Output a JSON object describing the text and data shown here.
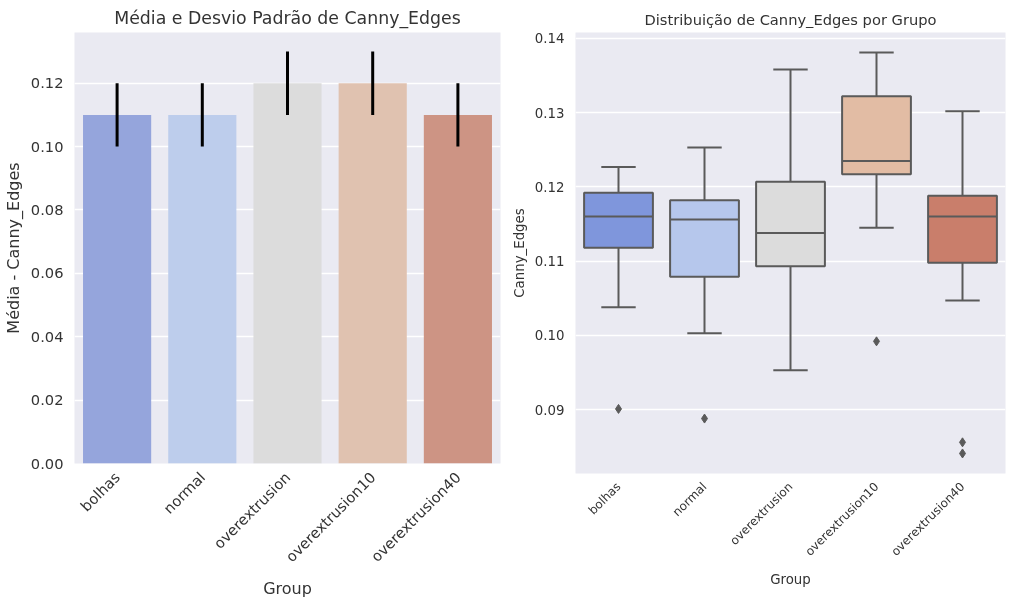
{
  "chart_data": [
    {
      "type": "bar",
      "title": "Média e Desvio Padrão de Canny_Edges",
      "xlabel": "Group",
      "ylabel": "Média - Canny_Edges",
      "categories": [
        "bolhas",
        "normal",
        "overextrusion",
        "overextrusion10",
        "overextrusion40"
      ],
      "values": [
        0.11,
        0.11,
        0.12,
        0.12,
        0.11
      ],
      "errors": [
        0.01,
        0.01,
        0.01,
        0.01,
        0.01
      ],
      "colors": [
        "#95a5dc",
        "#bdcdec",
        "#dcdcdc",
        "#e0c2b0",
        "#cd9484"
      ],
      "ylim": [
        0,
        0.136
      ],
      "yticks": [
        {
          "value": 0,
          "label": "0.00"
        },
        {
          "value": 0.02,
          "label": "0.02"
        },
        {
          "value": 0.04,
          "label": "0.04"
        },
        {
          "value": 0.06,
          "label": "0.06"
        },
        {
          "value": 0.08,
          "label": "0.08"
        },
        {
          "value": 0.1,
          "label": "0.10"
        },
        {
          "value": 0.12,
          "label": "0.12"
        }
      ],
      "grid": "y"
    },
    {
      "type": "box",
      "title": "Distribuição de Canny_Edges por Grupo",
      "xlabel": "Group",
      "ylabel": "Canny_Edges",
      "categories": [
        "bolhas",
        "normal",
        "overextrusion",
        "overextrusion10",
        "overextrusion40"
      ],
      "boxes": [
        {
          "low": 0.1038,
          "q1": 0.1118,
          "median": 0.116,
          "q3": 0.1192,
          "high": 0.1227,
          "outliers": [
            0.0901
          ]
        },
        {
          "low": 0.1003,
          "q1": 0.1079,
          "median": 0.1156,
          "q3": 0.1182,
          "high": 0.1253,
          "outliers": [
            0.0888
          ]
        },
        {
          "low": 0.0953,
          "q1": 0.1093,
          "median": 0.1138,
          "q3": 0.1207,
          "high": 0.1358
        },
        {
          "low": 0.1145,
          "q1": 0.1217,
          "median": 0.1235,
          "q3": 0.1322,
          "high": 0.1381,
          "outliers": [
            0.0992
          ]
        },
        {
          "low": 0.1047,
          "q1": 0.1098,
          "median": 0.116,
          "q3": 0.1188,
          "high": 0.1302,
          "outliers": [
            0.0856,
            0.0841
          ]
        }
      ],
      "colors": [
        "#7f96dc",
        "#b6c7ec",
        "#dcdcdc",
        "#e2bca4",
        "#c97e6b"
      ],
      "ylim": [
        0.0814,
        0.1408
      ],
      "yticks": [
        {
          "value": 0.09,
          "label": "0.09"
        },
        {
          "value": 0.1,
          "label": "0.10"
        },
        {
          "value": 0.11,
          "label": "0.11"
        },
        {
          "value": 0.12,
          "label": "0.12"
        },
        {
          "value": 0.13,
          "label": "0.13"
        },
        {
          "value": 0.14,
          "label": "0.14"
        }
      ],
      "grid": "y"
    }
  ]
}
